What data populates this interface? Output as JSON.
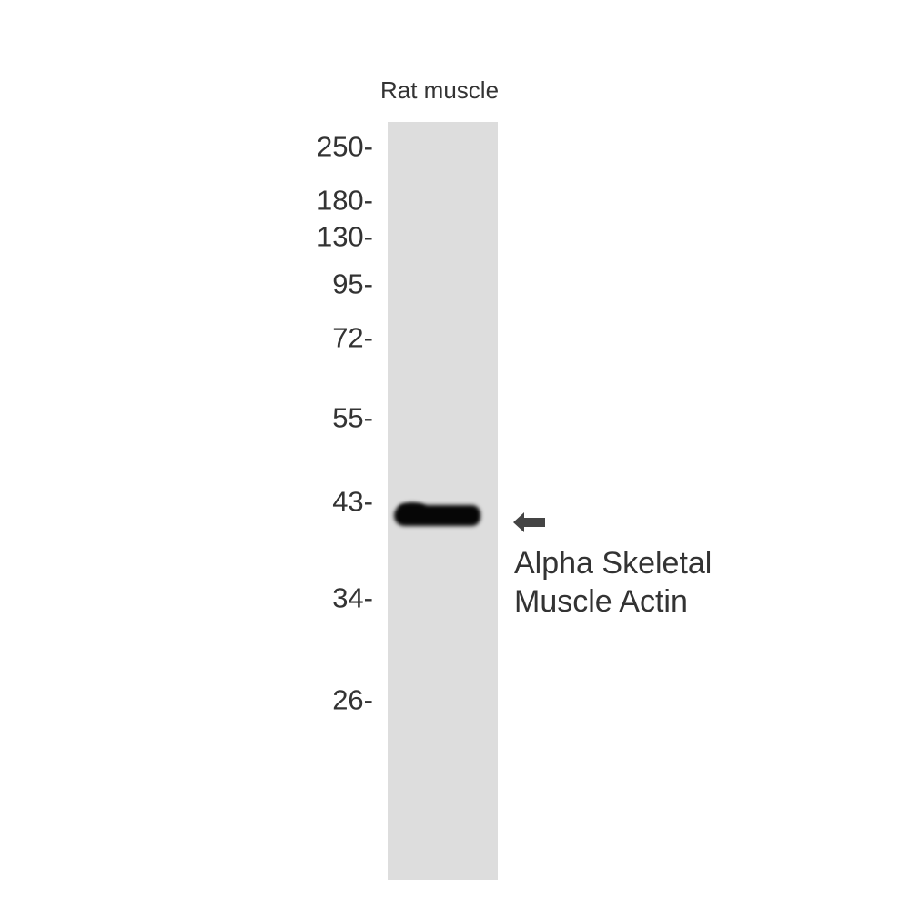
{
  "lane": {
    "label": "Rat muscle",
    "background": "#dddddd",
    "band_color": "#060606"
  },
  "markers": [
    "250-",
    "180-",
    "130-",
    "95-",
    "72-",
    "55-",
    "43-",
    "34-",
    "26-"
  ],
  "target": {
    "line1": "Alpha Skeletal",
    "line2": "Muscle Actin",
    "arrow_icon": "left-arrow-icon",
    "arrow_color": "#444444"
  }
}
